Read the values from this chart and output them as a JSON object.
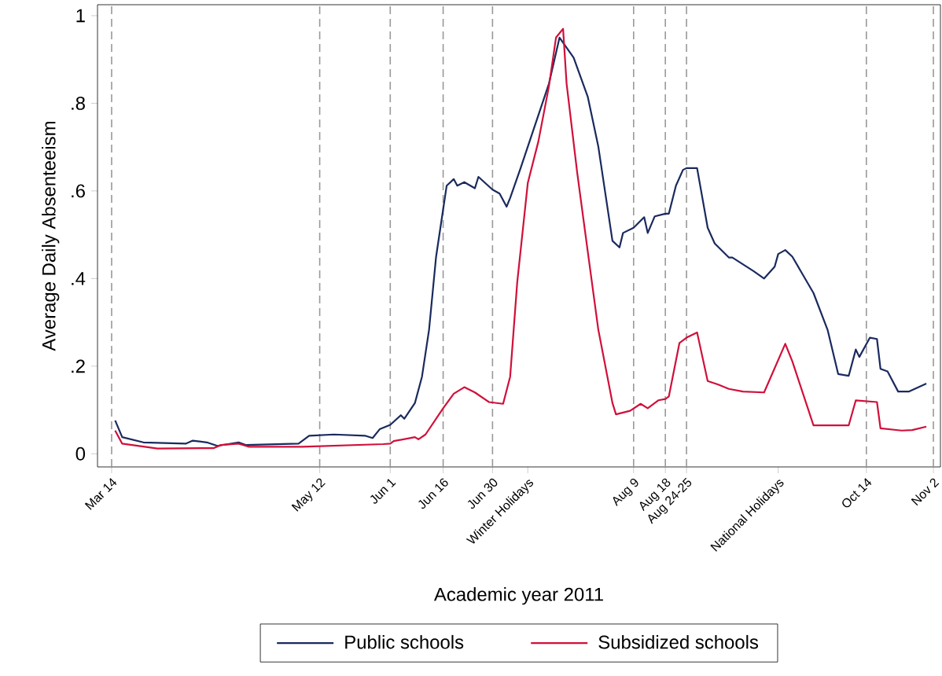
{
  "chart_data": {
    "type": "line",
    "xlabel": "Academic year 2011",
    "ylabel": "Average Daily Absenteeism",
    "xlim": [
      "2011-03-10",
      "2011-11-04"
    ],
    "ylim": [
      -0.03,
      1.025
    ],
    "xticks": [
      {
        "value": "2011-03-14",
        "label": "Mar 14"
      },
      {
        "value": "2011-05-12",
        "label": "May 12"
      },
      {
        "value": "2011-06-01",
        "label": "Jun 1"
      },
      {
        "value": "2011-06-16",
        "label": "Jun 16"
      },
      {
        "value": "2011-06-30",
        "label": "Jun 30"
      },
      {
        "value": "2011-07-10",
        "label": "Winter Holidays"
      },
      {
        "value": "2011-08-09",
        "label": "Aug 9"
      },
      {
        "value": "2011-08-18",
        "label": "Aug 18"
      },
      {
        "value": "2011-08-24",
        "label": "Aug 24-25"
      },
      {
        "value": "2011-09-19",
        "label": "National Holidays"
      },
      {
        "value": "2011-10-14",
        "label": "Oct 14"
      },
      {
        "value": "2011-11-02",
        "label": "Nov 2"
      }
    ],
    "yticks": [
      0,
      {
        "value": 0.2,
        "label": ".2"
      },
      {
        "value": 0.4,
        "label": ".4"
      },
      {
        "value": 0.6,
        "label": ".6"
      },
      {
        "value": 0.8,
        "label": ".8"
      },
      1
    ],
    "ref_lines": [
      {
        "axis": "x",
        "value": "2011-03-14",
        "color": "#999999",
        "line_style": "dashed"
      },
      {
        "axis": "x",
        "value": "2011-05-12",
        "color": "#999999",
        "line_style": "dashed"
      },
      {
        "axis": "x",
        "value": "2011-06-01",
        "color": "#999999",
        "line_style": "dashed"
      },
      {
        "axis": "x",
        "value": "2011-06-16",
        "color": "#999999",
        "line_style": "dashed"
      },
      {
        "axis": "x",
        "value": "2011-06-30",
        "color": "#999999",
        "line_style": "dashed"
      },
      {
        "axis": "x",
        "value": "2011-08-09",
        "color": "#999999",
        "line_style": "dashed"
      },
      {
        "axis": "x",
        "value": "2011-08-18",
        "color": "#999999",
        "line_style": "dashed"
      },
      {
        "axis": "x",
        "value": "2011-08-24",
        "color": "#999999",
        "line_style": "dashed"
      },
      {
        "axis": "x",
        "value": "2011-10-14",
        "color": "#999999",
        "line_style": "dashed"
      },
      {
        "axis": "x",
        "value": "2011-11-02",
        "color": "#999999",
        "line_style": "dashed"
      }
    ],
    "legend": "bottom",
    "series": [
      {
        "name": "Public schools",
        "color": "#1a2a5e",
        "x": [
          "2011-03-15",
          "2011-03-17",
          "2011-03-23",
          "2011-04-04",
          "2011-04-06",
          "2011-04-10",
          "2011-04-13",
          "2011-04-19",
          "2011-04-21",
          "2011-05-06",
          "2011-05-09",
          "2011-05-16",
          "2011-05-25",
          "2011-05-27",
          "2011-05-29",
          "2011-06-01",
          "2011-06-04",
          "2011-06-05",
          "2011-06-08",
          "2011-06-10",
          "2011-06-12",
          "2011-06-14",
          "2011-06-16",
          "2011-06-17",
          "2011-06-19",
          "2011-06-20",
          "2011-06-22",
          "2011-06-25",
          "2011-06-26",
          "2011-06-30",
          "2011-07-02",
          "2011-07-04",
          "2011-07-05",
          "2011-07-08",
          "2011-07-12",
          "2011-07-16",
          "2011-07-19",
          "2011-07-23",
          "2011-07-27",
          "2011-07-30",
          "2011-08-03",
          "2011-08-05",
          "2011-08-06",
          "2011-08-09",
          "2011-08-12",
          "2011-08-13",
          "2011-08-15",
          "2011-08-18",
          "2011-08-19",
          "2011-08-21",
          "2011-08-23",
          "2011-08-24",
          "2011-08-27",
          "2011-08-30",
          "2011-09-01",
          "2011-09-05",
          "2011-09-06",
          "2011-09-12",
          "2011-09-15",
          "2011-09-18",
          "2011-09-19",
          "2011-09-21",
          "2011-09-23",
          "2011-09-29",
          "2011-10-03",
          "2011-10-06",
          "2011-10-09",
          "2011-10-11",
          "2011-10-12",
          "2011-10-15",
          "2011-10-17",
          "2011-10-18",
          "2011-10-20",
          "2011-10-23",
          "2011-10-26",
          "2011-10-31"
        ],
        "values": [
          0.076,
          0.038,
          0.026,
          0.023,
          0.03,
          0.026,
          0.018,
          0.026,
          0.02,
          0.023,
          0.041,
          0.044,
          0.041,
          0.036,
          0.056,
          0.066,
          0.088,
          0.08,
          0.116,
          0.176,
          0.283,
          0.45,
          0.558,
          0.612,
          0.627,
          0.612,
          0.62,
          0.606,
          0.632,
          0.603,
          0.594,
          0.564,
          0.584,
          0.653,
          0.749,
          0.845,
          0.95,
          0.904,
          0.815,
          0.701,
          0.486,
          0.471,
          0.504,
          0.516,
          0.54,
          0.504,
          0.542,
          0.548,
          0.548,
          0.612,
          0.648,
          0.652,
          0.652,
          0.516,
          0.48,
          0.448,
          0.448,
          0.417,
          0.4,
          0.427,
          0.456,
          0.465,
          0.45,
          0.367,
          0.283,
          0.182,
          0.178,
          0.238,
          0.221,
          0.265,
          0.262,
          0.194,
          0.188,
          0.142,
          0.142,
          0.16
        ]
      },
      {
        "name": "Subsidized schools",
        "color": "#d0103a",
        "x": [
          "2011-03-15",
          "2011-03-17",
          "2011-03-27",
          "2011-04-12",
          "2011-04-14",
          "2011-04-19",
          "2011-04-22",
          "2011-05-07",
          "2011-05-30",
          "2011-06-01",
          "2011-06-02",
          "2011-06-08",
          "2011-06-09",
          "2011-06-11",
          "2011-06-16",
          "2011-06-19",
          "2011-06-22",
          "2011-06-25",
          "2011-06-29",
          "2011-07-03",
          "2011-07-05",
          "2011-07-07",
          "2011-07-10",
          "2011-07-13",
          "2011-07-16",
          "2011-07-18",
          "2011-07-20",
          "2011-07-21",
          "2011-07-24",
          "2011-07-27",
          "2011-07-30",
          "2011-08-03",
          "2011-08-04",
          "2011-08-08",
          "2011-08-11",
          "2011-08-13",
          "2011-08-16",
          "2011-08-18",
          "2011-08-19",
          "2011-08-22",
          "2011-08-24",
          "2011-08-27",
          "2011-08-30",
          "2011-09-02",
          "2011-09-05",
          "2011-09-09",
          "2011-09-15",
          "2011-09-21",
          "2011-09-23",
          "2011-09-29",
          "2011-10-09",
          "2011-10-11",
          "2011-10-17",
          "2011-10-18",
          "2011-10-24",
          "2011-10-27",
          "2011-10-31"
        ],
        "values": [
          0.053,
          0.023,
          0.012,
          0.013,
          0.02,
          0.023,
          0.016,
          0.016,
          0.022,
          0.023,
          0.029,
          0.038,
          0.033,
          0.044,
          0.104,
          0.137,
          0.152,
          0.14,
          0.118,
          0.114,
          0.176,
          0.391,
          0.618,
          0.713,
          0.839,
          0.95,
          0.97,
          0.845,
          0.642,
          0.462,
          0.283,
          0.116,
          0.09,
          0.098,
          0.114,
          0.104,
          0.122,
          0.125,
          0.131,
          0.253,
          0.265,
          0.277,
          0.166,
          0.158,
          0.148,
          0.142,
          0.14,
          0.251,
          0.211,
          0.065,
          0.065,
          0.122,
          0.118,
          0.058,
          0.053,
          0.054,
          0.062
        ]
      }
    ]
  }
}
